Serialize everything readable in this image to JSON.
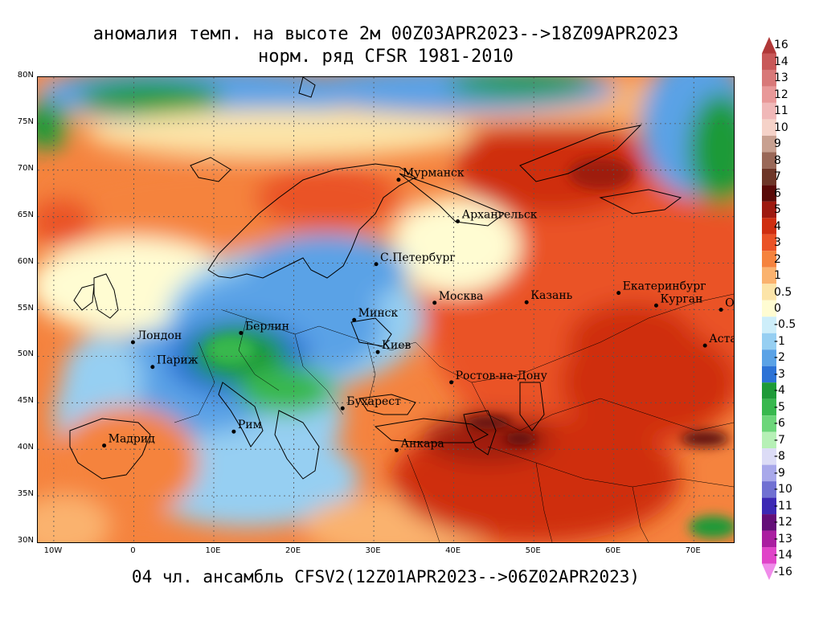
{
  "title_line1": "аномалия темп. на высоте 2м 00Z03APR2023-->18Z09APR2023",
  "title_line2": "норм. ряд CFSR 1981-2010",
  "footer": "04 чл. ансамбль CFSV2(12Z01APR2023-->06Z02APR2023)",
  "map": {
    "lat_labels": [
      "80N",
      "75N",
      "70N",
      "65N",
      "60N",
      "55N",
      "50N",
      "45N",
      "40N",
      "35N",
      "30N"
    ],
    "lon_labels": [
      "10W",
      "0",
      "10E",
      "20E",
      "30E",
      "40E",
      "50E",
      "60E",
      "70E"
    ],
    "cities": [
      {
        "name": "Мурманск",
        "lon": 33.1,
        "lat": 68.97
      },
      {
        "name": "Архангельск",
        "lon": 40.5,
        "lat": 64.5
      },
      {
        "name": "С.Петербург",
        "lon": 30.3,
        "lat": 59.9
      },
      {
        "name": "Москва",
        "lon": 37.6,
        "lat": 55.75
      },
      {
        "name": "Казань",
        "lon": 49.1,
        "lat": 55.8
      },
      {
        "name": "Екатеринбург",
        "lon": 60.6,
        "lat": 56.8
      },
      {
        "name": "Курган",
        "lon": 65.3,
        "lat": 55.45
      },
      {
        "name": "Омск",
        "lon": 73.4,
        "lat": 55.0
      },
      {
        "name": "Астана",
        "lon": 71.4,
        "lat": 51.15
      },
      {
        "name": "Минск",
        "lon": 27.55,
        "lat": 53.9
      },
      {
        "name": "Берлин",
        "lon": 13.4,
        "lat": 52.5
      },
      {
        "name": "Лондон",
        "lon": -0.1,
        "lat": 51.5
      },
      {
        "name": "Париж",
        "lon": 2.35,
        "lat": 48.85
      },
      {
        "name": "Киев",
        "lon": 30.5,
        "lat": 50.45
      },
      {
        "name": "Ростов-на-Дону",
        "lon": 39.7,
        "lat": 47.2
      },
      {
        "name": "Бухарест",
        "lon": 26.1,
        "lat": 44.4
      },
      {
        "name": "Рим",
        "lon": 12.5,
        "lat": 41.9
      },
      {
        "name": "Мадрид",
        "lon": -3.7,
        "lat": 40.4
      },
      {
        "name": "Анкара",
        "lon": 32.85,
        "lat": 39.9
      }
    ]
  },
  "colorbar": {
    "levels": [
      {
        "label": "16",
        "color": "#b03838"
      },
      {
        "label": "14",
        "color": "#c85858"
      },
      {
        "label": "13",
        "color": "#d87878"
      },
      {
        "label": "12",
        "color": "#e89898"
      },
      {
        "label": "11",
        "color": "#f0b8b8"
      },
      {
        "label": "10",
        "color": "#f5d2c8"
      },
      {
        "label": "9",
        "color": "#c8a090"
      },
      {
        "label": "8",
        "color": "#9a6858"
      },
      {
        "label": "7",
        "color": "#6e3628"
      },
      {
        "label": "6",
        "color": "#5a0a08"
      },
      {
        "label": "5",
        "color": "#9e1a10"
      },
      {
        "label": "4",
        "color": "#cf2e10"
      },
      {
        "label": "3",
        "color": "#ea5226"
      },
      {
        "label": "2",
        "color": "#f5833e"
      },
      {
        "label": "1",
        "color": "#fab26e"
      },
      {
        "label": "0.5",
        "color": "#fce4a8"
      },
      {
        "label": "0",
        "color": "#fffcd2"
      },
      {
        "label": "-0.5",
        "color": "#cdeefa"
      },
      {
        "label": "-1",
        "color": "#96cff2"
      },
      {
        "label": "-2",
        "color": "#5aa2e6"
      },
      {
        "label": "-3",
        "color": "#2c72d6"
      },
      {
        "label": "-4",
        "color": "#1e9a38"
      },
      {
        "label": "-5",
        "color": "#38b84e"
      },
      {
        "label": "-6",
        "color": "#6cd67a"
      },
      {
        "label": "-7",
        "color": "#b6f0b6"
      },
      {
        "label": "-8",
        "color": "#dcdcf6"
      },
      {
        "label": "-9",
        "color": "#a8a8ea"
      },
      {
        "label": "-10",
        "color": "#7070d2"
      },
      {
        "label": "-11",
        "color": "#3c28b4"
      },
      {
        "label": "-12",
        "color": "#640e78"
      },
      {
        "label": "-13",
        "color": "#aa1ea0"
      },
      {
        "label": "-14",
        "color": "#e044c8"
      },
      {
        "label": "-16",
        "color": "#f08cea"
      }
    ]
  }
}
